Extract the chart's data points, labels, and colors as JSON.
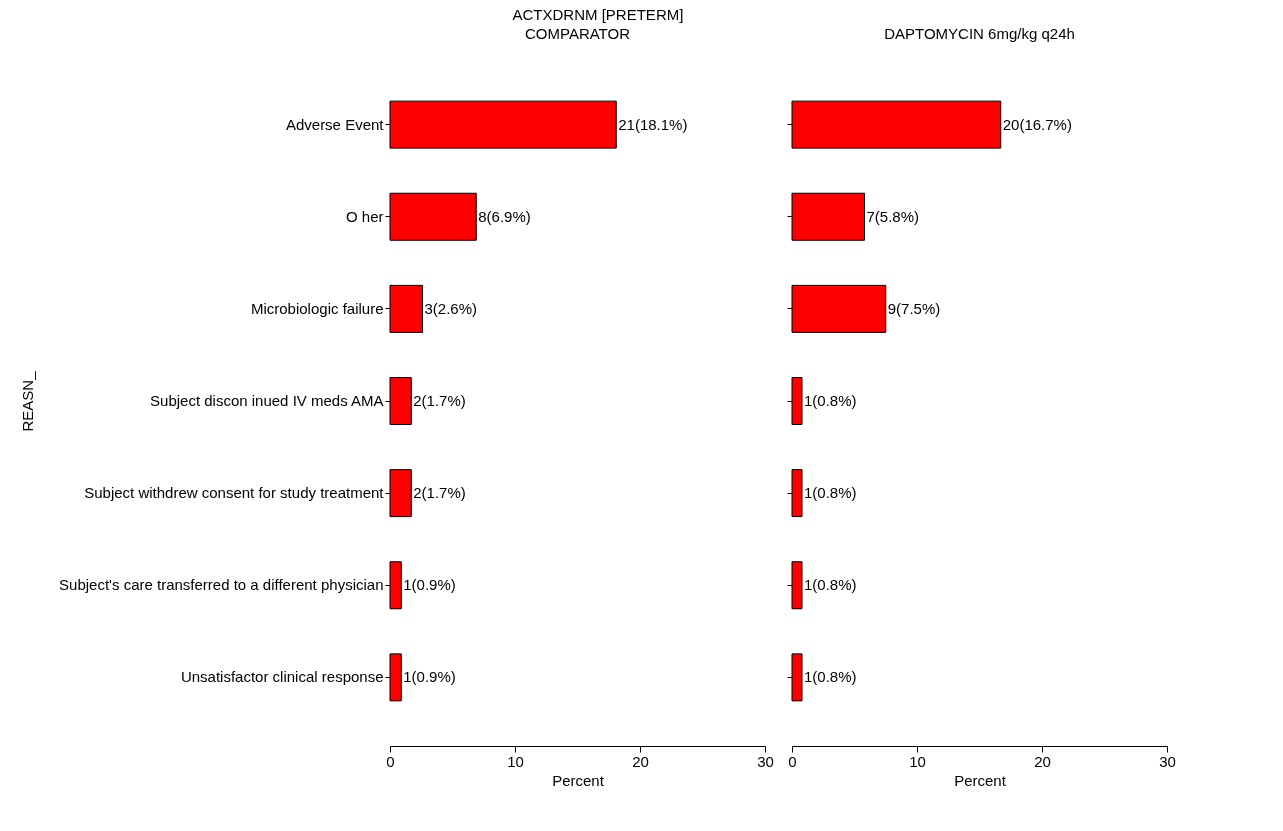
{
  "chart_data": [
    {
      "type": "bar",
      "orientation": "horizontal",
      "title": "ACTXDRNM [PRETERM]",
      "subtitle": "COMPARATOR",
      "xlabel": "Percent",
      "ylabel": "REASN_",
      "categories": [
        "Adverse Event",
        "O her",
        "Microbiologic failure",
        "Subject discon inued IV meds AMA",
        "Subject withdrew consent for study treatment",
        "Subject's care transferred to a different physician",
        "Unsatisfactor clinical response"
      ],
      "values": [
        18.1,
        6.9,
        2.6,
        1.7,
        1.7,
        0.9,
        0.9
      ],
      "value_labels": [
        "21(18.1%)",
        "8(6.9%)",
        "3(2.6%)",
        "2(1.7%)",
        "2(1.7%)",
        "1(0.9%)",
        "1(0.9%)"
      ],
      "color": "#ff0000",
      "xlim": [
        0,
        30
      ],
      "xticks": [
        0,
        10,
        20,
        30
      ],
      "grid": false
    },
    {
      "type": "bar",
      "orientation": "horizontal",
      "title": "DAPTOMYCIN 6mg/kg q24h",
      "xlabel": "Percent",
      "categories": [
        null,
        null,
        null,
        null,
        null,
        null,
        null
      ],
      "values": [
        16.7,
        5.8,
        7.5,
        0.8,
        0.8,
        0.8,
        0.8
      ],
      "value_labels": [
        "20(16.7%)",
        "7(5.8%)",
        "9(7.5%)",
        "1(0.8%)",
        "1(0.8%)",
        "1(0.8%)",
        "1(0.8%)"
      ],
      "color": "#ff0000",
      "xlim": [
        0,
        30
      ],
      "xticks": [
        0,
        10,
        20,
        30
      ],
      "grid": false,
      "tick_labels": "x"
    }
  ]
}
